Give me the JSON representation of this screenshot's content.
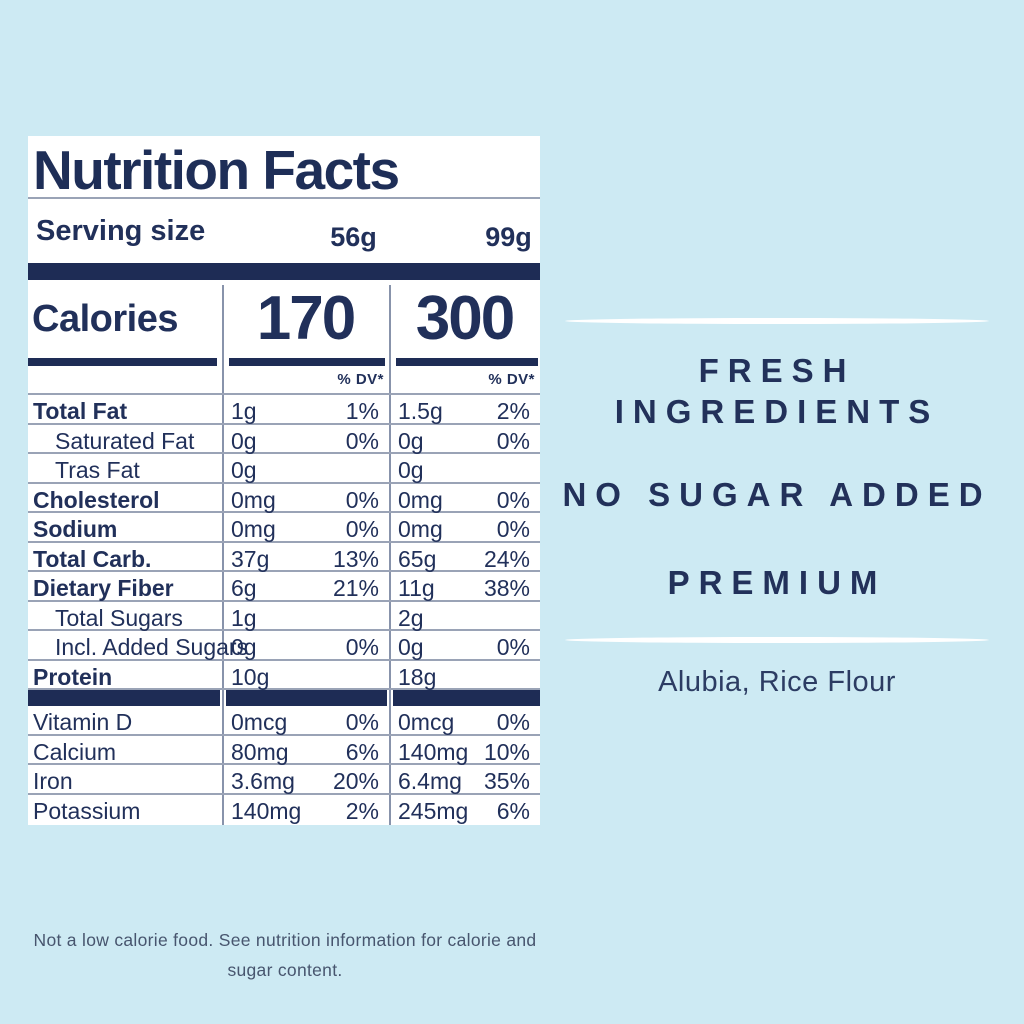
{
  "colors": {
    "background": "#cdeaf3",
    "navy": "#1e2c55",
    "label_background": "#ffffff",
    "rule_gray": "#9aa3b6",
    "claims_navy": "#22315a",
    "disclaimer_gray": "#47556e",
    "brush_white": "#ffffff"
  },
  "label": {
    "title": "Nutrition Facts",
    "serving": {
      "label": "Serving size",
      "size1": "56g",
      "size2": "99g"
    },
    "calories": {
      "label": "Calories",
      "value1": "170",
      "value2": "300"
    },
    "dv_header": "% DV*",
    "rows": [
      {
        "name": "Total Fat",
        "amt1": "1g",
        "pct1": "1%",
        "amt2": "1.5g",
        "pct2": "2%"
      },
      {
        "name": "Saturated Fat",
        "amt1": "0g",
        "pct1": "0%",
        "amt2": "0g",
        "pct2": "0%"
      },
      {
        "name": "Tras Fat",
        "amt1": "0g",
        "pct1": "",
        "amt2": "0g",
        "pct2": ""
      },
      {
        "name": "Cholesterol",
        "amt1": "0mg",
        "pct1": "0%",
        "amt2": "0mg",
        "pct2": "0%"
      },
      {
        "name": "Sodium",
        "amt1": "0mg",
        "pct1": "0%",
        "amt2": "0mg",
        "pct2": "0%"
      },
      {
        "name": "Total Carb.",
        "amt1": "37g",
        "pct1": "13%",
        "amt2": "65g",
        "pct2": "24%"
      },
      {
        "name": "Dietary Fiber",
        "amt1": "6g",
        "pct1": "21%",
        "amt2": "11g",
        "pct2": "38%"
      },
      {
        "name": "Total Sugars",
        "amt1": "1g",
        "pct1": "",
        "amt2": "2g",
        "pct2": ""
      },
      {
        "name": "Incl. Added Sugars",
        "amt1": "0g",
        "pct1": "0%",
        "amt2": "0g",
        "pct2": "0%"
      },
      {
        "name": "Protein",
        "amt1": "10g",
        "pct1": "",
        "amt2": "18g",
        "pct2": ""
      }
    ],
    "minerals": [
      {
        "name": "Vitamin D",
        "amt1": "0mcg",
        "pct1": "0%",
        "amt2": "0mcg",
        "pct2": "0%"
      },
      {
        "name": "Calcium",
        "amt1": "80mg",
        "pct1": "6%",
        "amt2": "140mg",
        "pct2": "10%"
      },
      {
        "name": "Iron",
        "amt1": "3.6mg",
        "pct1": "20%",
        "amt2": "6.4mg",
        "pct2": "35%"
      },
      {
        "name": "Potassium",
        "amt1": "140mg",
        "pct1": "2%",
        "amt2": "245mg",
        "pct2": "6%"
      }
    ]
  },
  "claims": {
    "claim1": "FRESH INGREDIENTS",
    "claim2": "NO SUGAR ADDED",
    "claim3": "PREMIUM"
  },
  "ingredients": "Alubia, Rice Flour",
  "disclaimer": {
    "line1": "Not a low calorie food. See nutrition information for calorie and",
    "line2": "sugar content."
  }
}
